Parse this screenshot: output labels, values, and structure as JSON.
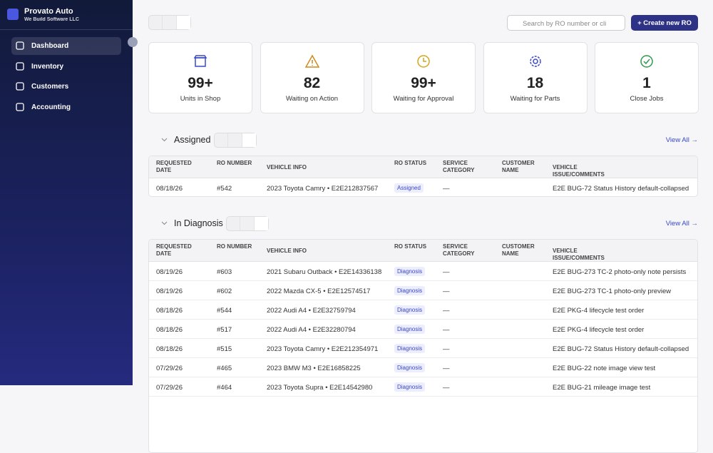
{
  "sidebar": {
    "brand": {
      "name": "Provato Auto",
      "subtitle": "We Build Software LLC"
    },
    "nav": [
      "Dashboard",
      "Inventory",
      "Customers",
      "Accounting"
    ]
  },
  "toolbar": {
    "search_placeholder": "Search by RO number or cli",
    "create_button": "Create new RO"
  },
  "stats": [
    {
      "value": "99+",
      "label": "Units in Shop"
    },
    {
      "value": "82",
      "label": "Waiting on Action"
    },
    {
      "value": "99+",
      "label": "Waiting for Approval"
    },
    {
      "value": "18",
      "label": "Waiting for Parts"
    },
    {
      "value": "1",
      "label": "Close Jobs"
    }
  ],
  "sections": [
    {
      "title": "Assigned",
      "view_all": "View All →",
      "columns": [
        "REQUESTED DATE",
        "RO NUMBER",
        "VEHICLE INFO",
        "RO STATUS",
        "SERVICE CATEGORY",
        "CUSTOMER NAME",
        "VEHICLE ISSUE/COMMENTS"
      ],
      "rows": [
        {
          "date": "08/18/26",
          "ro": "#542",
          "vehicle": "2023 Toyota Camry • E2E212837567",
          "status": "Assigned",
          "category": "—",
          "issue": "E2E BUG-72 Status History default-collapsed"
        }
      ]
    },
    {
      "title": "In Diagnosis",
      "view_all": "View All →",
      "columns": [
        "REQUESTED DATE",
        "RO NUMBER",
        "VEHICLE INFO",
        "RO STATUS",
        "SERVICE CATEGORY",
        "CUSTOMER NAME",
        "VEHICLE ISSUE/COMMENTS"
      ],
      "rows": [
        {
          "date": "08/19/26",
          "ro": "#603",
          "vehicle": "2021 Subaru Outback • E2E14336138",
          "status": "Diagnosis",
          "category": "—",
          "issue": "E2E BUG-273 TC-2 photo-only note persists"
        },
        {
          "date": "08/19/26",
          "ro": "#602",
          "vehicle": "2022 Mazda CX-5 • E2E12574517",
          "status": "Diagnosis",
          "category": "—",
          "issue": "E2E BUG-273 TC-1 photo-only preview"
        },
        {
          "date": "08/18/26",
          "ro": "#544",
          "vehicle": "2022 Audi A4 • E2E32759794",
          "status": "Diagnosis",
          "category": "—",
          "issue": "E2E PKG-4 lifecycle test order"
        },
        {
          "date": "08/18/26",
          "ro": "#517",
          "vehicle": "2022 Audi A4 • E2E32280794",
          "status": "Diagnosis",
          "category": "—",
          "issue": "E2E PKG-4 lifecycle test order"
        },
        {
          "date": "08/18/26",
          "ro": "#515",
          "vehicle": "2023 Toyota Camry • E2E212354971",
          "status": "Diagnosis",
          "category": "—",
          "issue": "E2E BUG-72 Status History default-collapsed"
        },
        {
          "date": "07/29/26",
          "ro": "#465",
          "vehicle": "2023 BMW M3 • E2E16858225",
          "status": "Diagnosis",
          "category": "—",
          "issue": "E2E BUG-22 note image view test"
        },
        {
          "date": "07/29/26",
          "ro": "#464",
          "vehicle": "2023 Toyota Supra • E2E14542980",
          "status": "Diagnosis",
          "category": "—",
          "issue": "E2E BUG-21 mileage image test"
        }
      ]
    }
  ]
}
